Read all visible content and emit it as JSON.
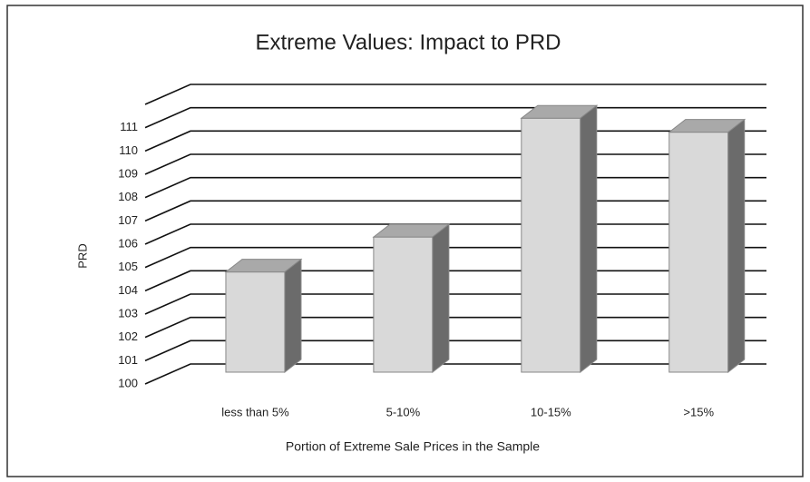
{
  "chart_data": {
    "type": "bar3d",
    "title": "Extreme Values: Impact to PRD",
    "x_label": "Portion of Extreme Sale Prices in the Sample",
    "y_label": "PRD",
    "categories": [
      "less than 5%",
      "5-10%",
      "10-15%",
      ">15%"
    ],
    "values": [
      104.3,
      105.8,
      110.9,
      110.3
    ],
    "color": "#d9d9d9",
    "ylim": [
      100,
      112
    ],
    "yticks": [
      100,
      101,
      102,
      103,
      104,
      105,
      106,
      107,
      108,
      109,
      110,
      111
    ],
    "grid": true
  }
}
